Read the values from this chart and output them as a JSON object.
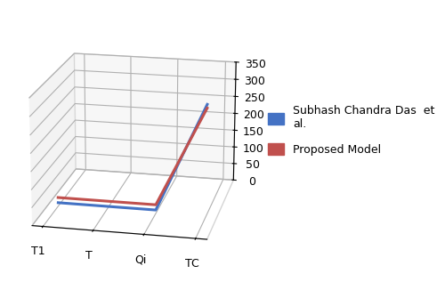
{
  "categories": [
    "T1",
    "T",
    "Qi",
    "TC"
  ],
  "series": [
    {
      "label": "Subhash Chandra Das  et\nal.",
      "values": [
        10,
        10,
        10,
        315
      ],
      "color": "#4472C4",
      "linewidth": 2.2
    },
    {
      "label": "Proposed Model",
      "values": [
        25,
        25,
        25,
        305
      ],
      "color": "#C0504D",
      "linewidth": 2.2
    }
  ],
  "ylim": [
    0,
    350
  ],
  "yticks": [
    0,
    50,
    100,
    150,
    200,
    250,
    300,
    350
  ],
  "bg_color": "#FFFFFF",
  "grid_color": "#AAAAAA",
  "legend_fontsize": 9,
  "tick_fontsize": 9,
  "figure_bg": "#FFFFFF",
  "elev": 18,
  "azim": -78,
  "dist": 8.5
}
